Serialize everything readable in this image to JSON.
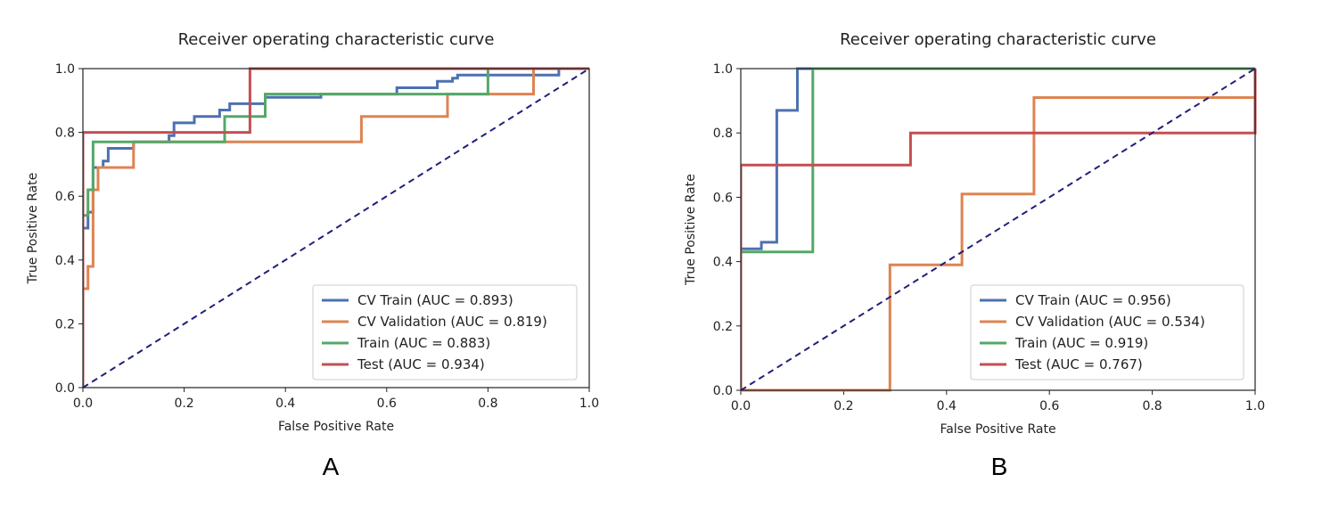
{
  "chart_data": [
    {
      "panel": "A",
      "type": "line",
      "title": "Receiver operating characteristic curve",
      "xlabel": "False Positive Rate",
      "ylabel": "True Positive Rate",
      "xlim": [
        0,
        1
      ],
      "ylim": [
        0,
        1
      ],
      "xticks": [
        "0.0",
        "0.2",
        "0.4",
        "0.6",
        "0.8",
        "1.0"
      ],
      "yticks": [
        "0.0",
        "0.2",
        "0.4",
        "0.6",
        "0.8",
        "1.0"
      ],
      "legend_position": "lower-right",
      "series": [
        {
          "name": "CV Train (AUC = 0.893)",
          "color": "#4c72b0",
          "x": [
            0,
            0,
            0.01,
            0.01,
            0.02,
            0.02,
            0.04,
            0.04,
            0.05,
            0.05,
            0.1,
            0.1,
            0.17,
            0.17,
            0.18,
            0.18,
            0.22,
            0.22,
            0.27,
            0.27,
            0.29,
            0.29,
            0.36,
            0.36,
            0.47,
            0.47,
            0.62,
            0.62,
            0.7,
            0.7,
            0.73,
            0.73,
            0.74,
            0.74,
            0.94,
            0.94,
            1.0
          ],
          "y": [
            0,
            0.5,
            0.5,
            0.55,
            0.55,
            0.69,
            0.69,
            0.71,
            0.71,
            0.75,
            0.75,
            0.77,
            0.77,
            0.79,
            0.79,
            0.83,
            0.83,
            0.85,
            0.85,
            0.87,
            0.87,
            0.89,
            0.89,
            0.91,
            0.91,
            0.92,
            0.92,
            0.94,
            0.94,
            0.96,
            0.96,
            0.97,
            0.97,
            0.98,
            0.98,
            1.0,
            1.0
          ]
        },
        {
          "name": "CV Validation (AUC = 0.819)",
          "color": "#dd8452",
          "x": [
            0,
            0,
            0.01,
            0.01,
            0.02,
            0.02,
            0.03,
            0.03,
            0.1,
            0.1,
            0.55,
            0.55,
            0.72,
            0.72,
            0.89,
            0.89,
            1.0
          ],
          "y": [
            0,
            0.31,
            0.31,
            0.38,
            0.38,
            0.62,
            0.62,
            0.69,
            0.69,
            0.77,
            0.77,
            0.85,
            0.85,
            0.92,
            0.92,
            1.0,
            1.0
          ]
        },
        {
          "name": "Train (AUC = 0.883)",
          "color": "#55a868",
          "x": [
            0,
            0,
            0.01,
            0.01,
            0.02,
            0.02,
            0.28,
            0.28,
            0.36,
            0.36,
            0.8,
            0.8,
            1.0
          ],
          "y": [
            0,
            0.54,
            0.54,
            0.62,
            0.62,
            0.77,
            0.77,
            0.85,
            0.85,
            0.92,
            0.92,
            1.0,
            1.0
          ]
        },
        {
          "name": "Test (AUC = 0.934)",
          "color": "#c44e52",
          "x": [
            0,
            0,
            0.33,
            0.33,
            1.0
          ],
          "y": [
            0,
            0.8,
            0.8,
            1.0,
            1.0
          ]
        }
      ],
      "diagonal": {
        "x": [
          0,
          1
        ],
        "y": [
          0,
          1
        ],
        "color": "#1f1f7a",
        "style": "dashed"
      }
    },
    {
      "panel": "B",
      "type": "line",
      "title": "Receiver operating characteristic curve",
      "xlabel": "False Positive Rate",
      "ylabel": "True Positive Rate",
      "xlim": [
        0,
        1
      ],
      "ylim": [
        0,
        1
      ],
      "xticks": [
        "0.0",
        "0.2",
        "0.4",
        "0.6",
        "0.8",
        "1.0"
      ],
      "yticks": [
        "0.0",
        "0.2",
        "0.4",
        "0.6",
        "0.8",
        "1.0"
      ],
      "legend_position": "lower-right",
      "series": [
        {
          "name": "CV Train (AUC = 0.956)",
          "color": "#4c72b0",
          "x": [
            0,
            0,
            0.04,
            0.04,
            0.07,
            0.07,
            0.11,
            0.11,
            1.0
          ],
          "y": [
            0,
            0.44,
            0.44,
            0.46,
            0.46,
            0.87,
            0.87,
            1.0,
            1.0
          ]
        },
        {
          "name": "CV Validation (AUC = 0.534)",
          "color": "#dd8452",
          "x": [
            0,
            0.29,
            0.29,
            0.43,
            0.43,
            0.57,
            0.57,
            1.0,
            1.0
          ],
          "y": [
            0,
            0,
            0.39,
            0.39,
            0.61,
            0.61,
            0.91,
            0.91,
            1.0
          ]
        },
        {
          "name": "Train (AUC = 0.919)",
          "color": "#55a868",
          "x": [
            0,
            0,
            0.14,
            0.14,
            1.0
          ],
          "y": [
            0,
            0.43,
            0.43,
            1.0,
            1.0
          ]
        },
        {
          "name": "Test (AUC = 0.767)",
          "color": "#c44e52",
          "x": [
            0,
            0,
            0.33,
            0.33,
            1.0,
            1.0
          ],
          "y": [
            0,
            0.7,
            0.7,
            0.8,
            0.8,
            1.0
          ]
        }
      ],
      "diagonal": {
        "x": [
          0,
          1
        ],
        "y": [
          0,
          1
        ],
        "color": "#1f1f7a",
        "style": "dashed"
      }
    }
  ],
  "panel_labels": [
    "A",
    "B"
  ]
}
